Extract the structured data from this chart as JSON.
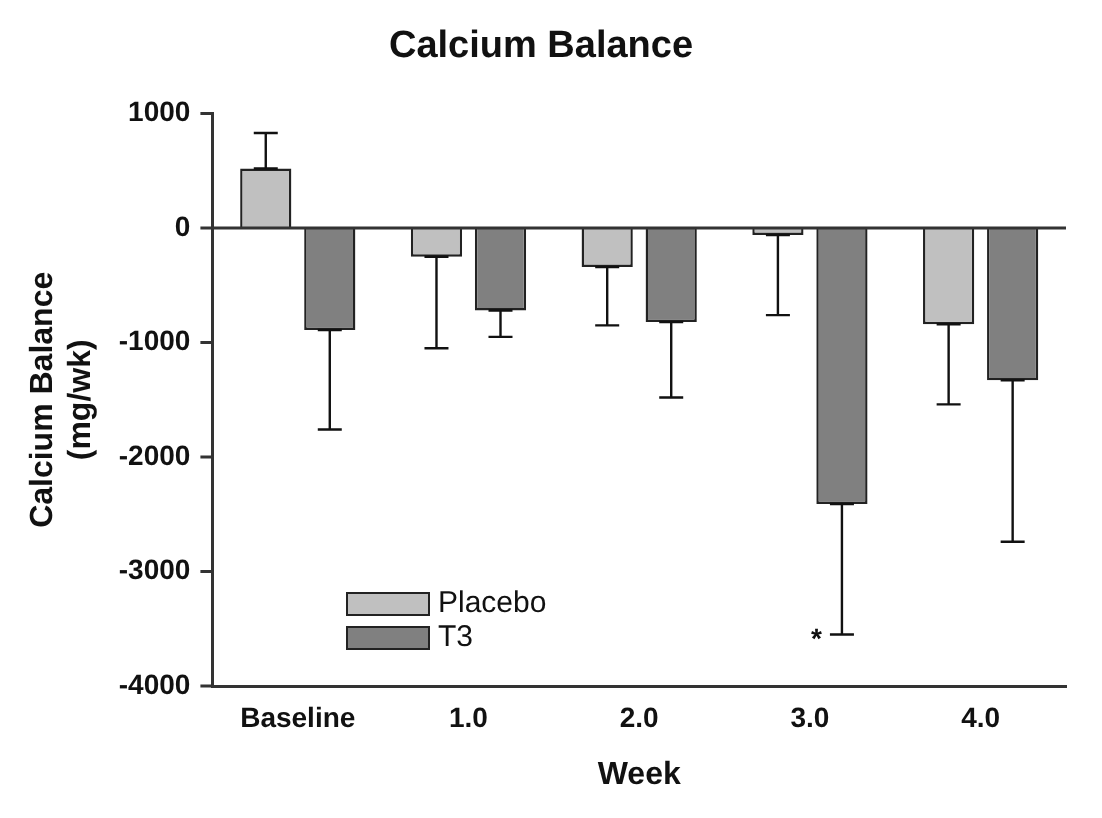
{
  "chart_data": {
    "type": "bar",
    "title": "Calcium Balance",
    "xlabel": "Week",
    "ylabel": "Calcium Balance\n(mg/wk)",
    "categories": [
      "Baseline",
      "1.0",
      "2.0",
      "3.0",
      "4.0"
    ],
    "series": [
      {
        "name": "Placebo",
        "color": "#c0c0c0",
        "values": [
          520,
          -250,
          -340,
          -60,
          -840
        ],
        "errors": [
          [
            520,
            830
          ],
          [
            -1050,
            -250
          ],
          [
            -850,
            -340
          ],
          [
            -760,
            -60
          ],
          [
            -1540,
            -840
          ]
        ]
      },
      {
        "name": "T3",
        "color": "#808080",
        "values": [
          -890,
          -720,
          -820,
          -2410,
          -1330
        ],
        "errors": [
          [
            -1760,
            -890
          ],
          [
            -950,
            -720
          ],
          [
            -1480,
            -820
          ],
          [
            -3550,
            -2410
          ],
          [
            -2740,
            -1330
          ]
        ]
      }
    ],
    "ref_lines": [
      {
        "axis": "y",
        "value": 0
      }
    ],
    "ylim": [
      -4000,
      1000
    ],
    "yticks": [
      -4000,
      -3000,
      -2000,
      -1000,
      0,
      1000
    ],
    "grid": false,
    "legend": "bottom left",
    "annotations": [
      "*"
    ]
  }
}
